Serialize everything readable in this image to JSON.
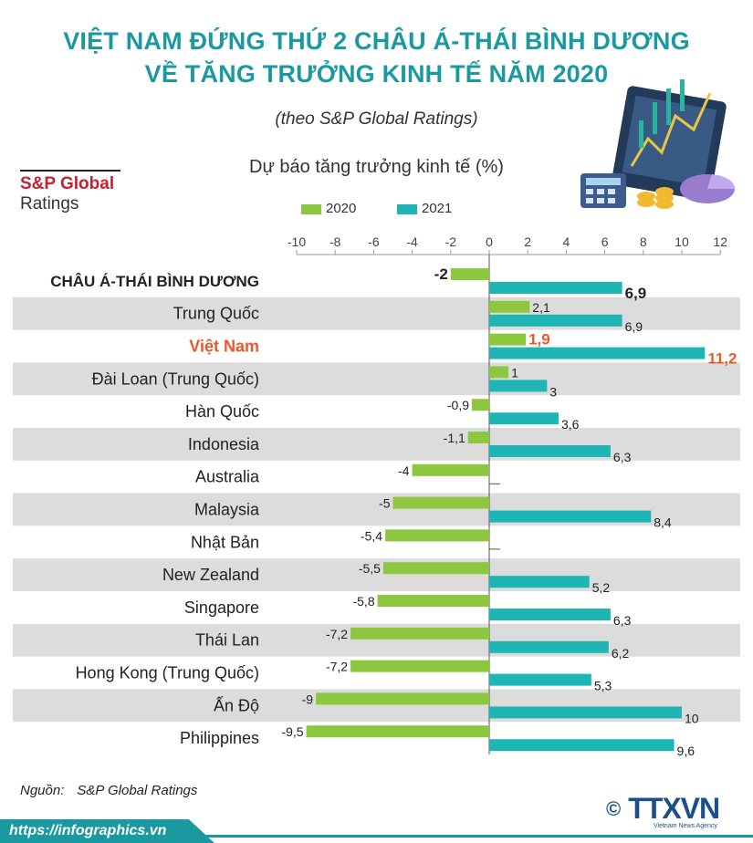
{
  "header": {
    "title_line1": "VIỆT NAM ĐỨNG THỨ 2 CHÂU Á-THÁI BÌNH DƯƠNG",
    "title_line2": "VỀ TĂNG TRƯỞNG KINH TẾ NĂM 2020",
    "subtitle": "(theo S&P Global Ratings)"
  },
  "brand": {
    "line1": "S&P Global",
    "line2": "Ratings"
  },
  "chart_data": {
    "type": "bar",
    "orientation": "horizontal",
    "title": "Dự báo tăng trưởng kinh tế (%)",
    "xlim": [
      -10,
      12
    ],
    "xticks": [
      "-10",
      "-8",
      "-6",
      "-4",
      "-2",
      "0",
      "2",
      "4",
      "6",
      "8",
      "10",
      "12"
    ],
    "legend_position": "top",
    "categories": [
      "CHÂU Á-THÁI BÌNH DƯƠNG",
      "Trung Quốc",
      "Việt Nam",
      "Đài Loan (Trung Quốc)",
      "Hàn Quốc",
      "Indonesia",
      "Australia",
      "Malaysia",
      "Nhật Bản",
      "New Zealand",
      "Singapore",
      "Thái Lan",
      "Hong Kong (Trung Quốc)",
      "Ấn Độ",
      "Philippines"
    ],
    "series": [
      {
        "name": "2020",
        "color": "#8dc63f",
        "values": [
          -2,
          2.1,
          1.9,
          1,
          -0.9,
          -1.1,
          -4,
          -5,
          -5.4,
          -5.5,
          -5.8,
          -7.2,
          -7.2,
          -9,
          -9.5
        ],
        "labels": [
          "-2",
          "2,1",
          "1,9",
          "1",
          "-0,9",
          "-1,1",
          "-4",
          "-5",
          "-5,4",
          "-5,5",
          "-5,8",
          "-7,2",
          "-7,2",
          "-9",
          "-9,5"
        ]
      },
      {
        "name": "2021",
        "color": "#1fb5b5",
        "values": [
          6.9,
          6.9,
          11.2,
          3,
          3.6,
          6.3,
          null,
          8.4,
          null,
          5.2,
          6.3,
          6.2,
          5.3,
          10,
          9.6
        ],
        "labels": [
          "6,9",
          "6,9",
          "11,2",
          "3",
          "3,6",
          "6,3",
          "",
          "8,4",
          "",
          "5,2",
          "6,3",
          "6,2",
          "5,3",
          "10",
          "9,6"
        ]
      }
    ],
    "highlight_color": "#e8582b",
    "row_band_color": "#dcdcdc"
  },
  "footer": {
    "source_label": "Nguồn:",
    "source_name": "S&P Global Ratings",
    "url": "https://infographics.vn",
    "logo_copyright": "©",
    "logo_text": "TTXVN",
    "logo_tagline": "Vietnam News Agency"
  }
}
